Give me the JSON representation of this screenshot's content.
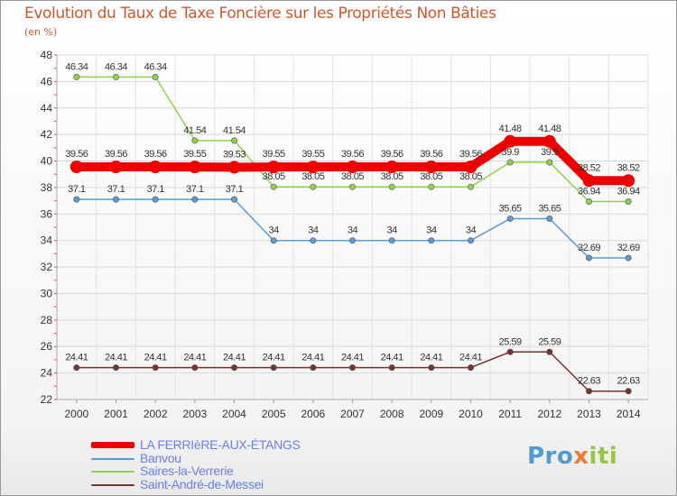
{
  "title": "Evolution du Taux de Taxe Foncière sur les Propriétés Non Bâties",
  "subtitle": "(en %)",
  "logo": {
    "parts": [
      "Pro",
      "x",
      "iti"
    ],
    "colors": [
      "#4f9bd6",
      "#ea7d35",
      "#98c544"
    ]
  },
  "chart_data": {
    "type": "line",
    "x": [
      "2000",
      "2001",
      "2002",
      "2003",
      "2004",
      "2005",
      "2006",
      "2007",
      "2008",
      "2009",
      "2010",
      "2011",
      "2012",
      "2013",
      "2014"
    ],
    "ylim": [
      22,
      48
    ],
    "yticks": [
      22,
      24,
      26,
      28,
      30,
      32,
      34,
      36,
      38,
      40,
      42,
      44,
      46,
      48
    ],
    "grid": true,
    "legend_position": "bottom-left",
    "series": [
      {
        "name": "LA FERRIèRE-AUX-ÉTANGS",
        "color": "#ee0000",
        "values": [
          39.56,
          39.56,
          39.56,
          39.55,
          39.53,
          39.55,
          39.55,
          39.56,
          39.56,
          39.56,
          39.56,
          41.48,
          41.48,
          38.52,
          38.52
        ],
        "labels": [
          "39.56",
          "39.56",
          "39.56",
          "39.55",
          "39.53",
          "39.55",
          "39.55",
          "39.56",
          "39.56",
          "39.56",
          "39.56",
          "41.48",
          "41.48",
          "38.52",
          "38.52"
        ]
      },
      {
        "name": "Banvou",
        "color": "#5b9bd5",
        "values": [
          37.1,
          37.1,
          37.1,
          37.1,
          37.1,
          34,
          34,
          34,
          34,
          34,
          34,
          35.65,
          35.65,
          32.69,
          32.69
        ],
        "labels": [
          "37.1",
          "37.1",
          "37.1",
          "37.1",
          "37.1",
          "34",
          "34",
          "34",
          "34",
          "34",
          "34",
          "35.65",
          "35.65",
          "32.69",
          "32.69"
        ]
      },
      {
        "name": "Saires-la-Verrerie",
        "color": "#8fd14f",
        "values": [
          46.34,
          46.34,
          46.34,
          41.54,
          41.54,
          38.05,
          38.05,
          38.05,
          38.05,
          38.05,
          38.05,
          39.9,
          39.9,
          36.94,
          36.94
        ],
        "labels": [
          "46.34",
          "46.34",
          "46.34",
          "41.54",
          "41.54",
          "38.05",
          "38.05",
          "38.05",
          "38.05",
          "38.05",
          "38.05",
          "39.9",
          "39.9",
          "36.94",
          "36.94"
        ]
      },
      {
        "name": "Saint-André-de-Messei",
        "color": "#7a3131",
        "values": [
          24.41,
          24.41,
          24.41,
          24.41,
          24.41,
          24.41,
          24.41,
          24.41,
          24.41,
          24.41,
          24.41,
          25.59,
          25.59,
          22.63,
          22.63
        ],
        "labels": [
          "24.41",
          "24.41",
          "24.41",
          "24.41",
          "24.41",
          "24.41",
          "24.41",
          "24.41",
          "24.41",
          "24.41",
          "24.41",
          "25.59",
          "25.59",
          "22.63",
          "22.63"
        ]
      }
    ]
  }
}
